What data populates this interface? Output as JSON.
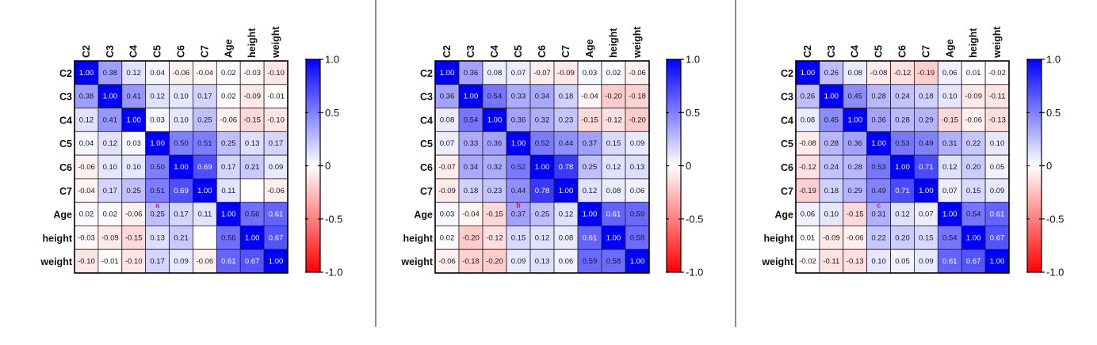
{
  "chart_data": [
    {
      "type": "heatmap",
      "panel_label": "a",
      "annotation_cell": {
        "row": "Age",
        "col": "C5"
      },
      "rows": [
        "C2",
        "C3",
        "C4",
        "C5",
        "C6",
        "C7",
        "Age",
        "height",
        "weight"
      ],
      "cols": [
        "C2",
        "C3",
        "C4",
        "C5",
        "C6",
        "C7",
        "Age",
        "height",
        "weight"
      ],
      "values": [
        [
          1.0,
          0.38,
          0.12,
          0.04,
          -0.06,
          -0.04,
          0.02,
          -0.03,
          -0.1
        ],
        [
          0.38,
          1.0,
          0.41,
          0.12,
          0.1,
          0.17,
          0.02,
          -0.09,
          -0.01
        ],
        [
          0.12,
          0.41,
          1.0,
          0.03,
          0.1,
          0.25,
          -0.06,
          -0.15,
          -0.1
        ],
        [
          0.04,
          0.12,
          0.03,
          1.0,
          0.5,
          0.51,
          0.25,
          0.13,
          0.17
        ],
        [
          -0.06,
          0.1,
          0.1,
          0.5,
          1.0,
          0.69,
          0.17,
          0.21,
          0.09
        ],
        [
          -0.04,
          0.17,
          0.25,
          0.51,
          0.69,
          1.0,
          0.11,
          null,
          -0.06
        ],
        [
          0.02,
          0.02,
          -0.06,
          0.25,
          0.17,
          0.11,
          1.0,
          0.56,
          0.61
        ],
        [
          -0.03,
          -0.09,
          -0.15,
          0.13,
          0.21,
          null,
          0.56,
          1.0,
          0.67
        ],
        [
          -0.1,
          -0.01,
          -0.1,
          0.17,
          0.09,
          -0.06,
          0.61,
          0.67,
          1.0
        ]
      ],
      "colorbar": {
        "range": [
          -1.0,
          1.0
        ],
        "ticks": [
          "1.0",
          "0.5",
          "0",
          "-0.5",
          "-1.0"
        ],
        "tick_values": [
          1.0,
          0.5,
          0,
          -0.5,
          -1.0
        ]
      }
    },
    {
      "type": "heatmap",
      "panel_label": "b",
      "annotation_cell": {
        "row": "Age",
        "col": "C5"
      },
      "rows": [
        "C2",
        "C3",
        "C4",
        "C5",
        "C6",
        "C7",
        "Age",
        "height",
        "weight"
      ],
      "cols": [
        "C2",
        "C3",
        "C4",
        "C5",
        "C6",
        "C7",
        "Age",
        "height",
        "weight"
      ],
      "values": [
        [
          1.0,
          0.36,
          0.08,
          0.07,
          -0.07,
          -0.09,
          0.03,
          0.02,
          -0.06
        ],
        [
          0.36,
          1.0,
          0.54,
          0.33,
          0.34,
          0.18,
          -0.04,
          -0.2,
          -0.18
        ],
        [
          0.08,
          0.54,
          1.0,
          0.36,
          0.32,
          0.23,
          -0.15,
          -0.12,
          -0.2
        ],
        [
          0.07,
          0.33,
          0.36,
          1.0,
          0.52,
          0.44,
          0.37,
          0.15,
          0.09
        ],
        [
          -0.07,
          0.34,
          0.32,
          0.52,
          1.0,
          0.78,
          0.25,
          0.12,
          0.13
        ],
        [
          -0.09,
          0.18,
          0.23,
          0.44,
          0.78,
          1.0,
          0.12,
          0.08,
          0.06
        ],
        [
          0.03,
          -0.04,
          -0.15,
          0.37,
          0.25,
          0.12,
          1.0,
          0.61,
          0.59
        ],
        [
          0.02,
          -0.2,
          -0.12,
          0.15,
          0.12,
          0.08,
          0.61,
          1.0,
          0.58
        ],
        [
          -0.06,
          -0.18,
          -0.2,
          0.09,
          0.13,
          0.06,
          0.59,
          0.58,
          1.0
        ]
      ],
      "colorbar": {
        "range": [
          -1.0,
          1.0
        ],
        "ticks": [
          "1.0",
          "0.5",
          "0",
          "-0.5",
          "-1.0"
        ],
        "tick_values": [
          1.0,
          0.5,
          0,
          -0.5,
          -1.0
        ]
      }
    },
    {
      "type": "heatmap",
      "panel_label": "c",
      "annotation_cell": {
        "row": "Age",
        "col": "C5"
      },
      "rows": [
        "C2",
        "C3",
        "C4",
        "C5",
        "C6",
        "C7",
        "Age",
        "height",
        "weight"
      ],
      "cols": [
        "C2",
        "C3",
        "C4",
        "C5",
        "C6",
        "C7",
        "Age",
        "height",
        "weight"
      ],
      "values": [
        [
          1.0,
          0.26,
          0.08,
          -0.08,
          -0.12,
          -0.19,
          0.06,
          0.01,
          -0.02
        ],
        [
          0.26,
          1.0,
          0.45,
          0.28,
          0.24,
          0.18,
          0.1,
          -0.09,
          -0.11
        ],
        [
          0.08,
          0.45,
          1.0,
          0.36,
          0.28,
          0.29,
          -0.15,
          -0.06,
          -0.13
        ],
        [
          -0.08,
          0.28,
          0.36,
          1.0,
          0.53,
          0.49,
          0.31,
          0.22,
          0.1
        ],
        [
          -0.12,
          0.24,
          0.28,
          0.53,
          1.0,
          0.71,
          0.12,
          0.2,
          0.05
        ],
        [
          -0.19,
          0.18,
          0.29,
          0.49,
          0.71,
          1.0,
          0.07,
          0.15,
          0.09
        ],
        [
          0.06,
          0.1,
          -0.15,
          0.31,
          0.12,
          0.07,
          1.0,
          0.54,
          0.61
        ],
        [
          0.01,
          -0.09,
          -0.06,
          0.22,
          0.2,
          0.15,
          0.54,
          1.0,
          0.67
        ],
        [
          -0.02,
          -0.11,
          -0.13,
          0.1,
          0.05,
          0.09,
          0.61,
          0.67,
          1.0
        ]
      ],
      "colorbar": {
        "range": [
          -1.0,
          1.0
        ],
        "ticks": [
          "1.0",
          "0.5",
          "0",
          "-0.5",
          "-1.0"
        ],
        "tick_values": [
          1.0,
          0.5,
          0,
          -0.5,
          -1.0
        ]
      }
    }
  ],
  "colors": {
    "positive": "#0000ff",
    "negative": "#ff0000",
    "neutral": "#ffffff",
    "annotation": "#e0102a",
    "divider": "#8c8c8c"
  }
}
